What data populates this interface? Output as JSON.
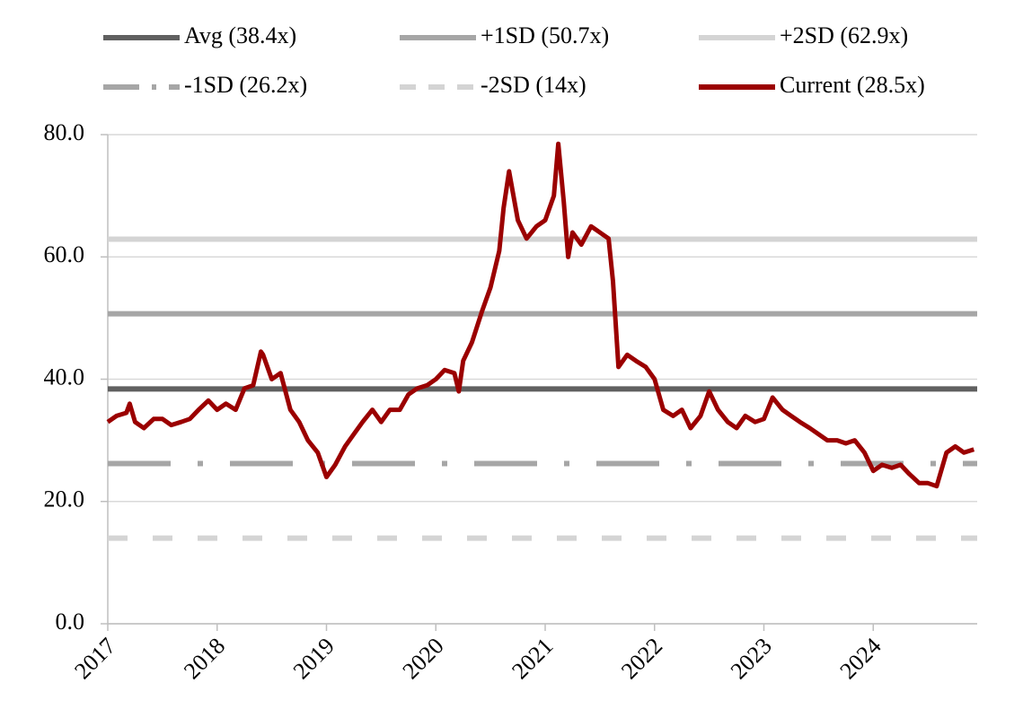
{
  "chart_data": {
    "type": "line",
    "hlines": [
      {
        "name": "Avg (38.4x)",
        "value": 38.4,
        "color": "#606060",
        "dash": "solid"
      },
      {
        "name": "+1SD (50.7x)",
        "value": 50.7,
        "color": "#a6a6a6",
        "dash": "solid"
      },
      {
        "name": "+2SD (62.9x)",
        "value": 62.9,
        "color": "#d4d4d4",
        "dash": "solid"
      },
      {
        "name": "-1SD (26.2x)",
        "value": 26.2,
        "color": "#a6a6a6",
        "dash": "dashdot"
      },
      {
        "name": "-2SD (14x)",
        "value": 14,
        "color": "#d4d4d4",
        "dash": "dash"
      }
    ],
    "series": [
      {
        "name": "Current (28.5x)",
        "color": "#9b0000",
        "x": [
          2017.0,
          2017.08,
          2017.17,
          2017.2,
          2017.25,
          2017.33,
          2017.42,
          2017.5,
          2017.58,
          2017.67,
          2017.75,
          2017.83,
          2017.92,
          2018.0,
          2018.08,
          2018.17,
          2018.25,
          2018.33,
          2018.4,
          2018.42,
          2018.5,
          2018.58,
          2018.67,
          2018.75,
          2018.83,
          2018.92,
          2019.0,
          2019.08,
          2019.17,
          2019.25,
          2019.33,
          2019.42,
          2019.5,
          2019.58,
          2019.67,
          2019.75,
          2019.83,
          2019.92,
          2020.0,
          2020.08,
          2020.17,
          2020.21,
          2020.25,
          2020.33,
          2020.42,
          2020.5,
          2020.58,
          2020.62,
          2020.67,
          2020.75,
          2020.83,
          2020.92,
          2021.0,
          2021.08,
          2021.12,
          2021.17,
          2021.21,
          2021.25,
          2021.33,
          2021.42,
          2021.5,
          2021.58,
          2021.62,
          2021.67,
          2021.75,
          2021.83,
          2021.92,
          2022.0,
          2022.08,
          2022.17,
          2022.25,
          2022.33,
          2022.42,
          2022.5,
          2022.58,
          2022.67,
          2022.75,
          2022.83,
          2022.92,
          2023.0,
          2023.08,
          2023.17,
          2023.25,
          2023.33,
          2023.42,
          2023.5,
          2023.58,
          2023.67,
          2023.75,
          2023.83,
          2023.92,
          2024.0,
          2024.08,
          2024.17,
          2024.25,
          2024.33,
          2024.42,
          2024.5,
          2024.58,
          2024.67,
          2024.75,
          2024.83,
          2024.92
        ],
        "values": [
          33,
          34,
          34.5,
          36,
          33,
          32,
          33.5,
          33.5,
          32.5,
          33,
          33.5,
          35,
          36.5,
          35,
          36,
          35,
          38.5,
          39,
          44.5,
          44,
          40,
          41,
          35,
          33,
          30,
          28,
          24,
          26,
          29,
          31,
          33,
          35,
          33,
          35,
          35,
          37.5,
          38.5,
          39,
          40,
          41.5,
          41,
          38,
          43,
          46,
          51,
          55,
          61,
          68,
          74,
          66,
          63,
          65,
          66,
          70,
          78.5,
          69,
          60,
          64,
          62,
          65,
          64,
          63,
          56,
          42,
          44,
          43,
          42,
          40,
          35,
          34,
          35,
          32,
          34,
          38,
          35,
          33,
          32,
          34,
          33,
          33.5,
          37,
          35,
          34,
          33,
          32,
          31,
          30,
          30,
          29.5,
          30,
          28,
          25,
          26,
          25.5,
          26,
          24.5,
          23,
          23,
          22.5,
          28,
          29,
          28,
          28.5
        ]
      }
    ],
    "xlim": [
      2017,
      2025
    ],
    "xticks": [
      2017,
      2018,
      2019,
      2020,
      2021,
      2022,
      2023,
      2024
    ],
    "ylim": [
      0,
      80
    ],
    "yticks": [
      {
        "value": 0,
        "label": "0.0"
      },
      {
        "value": 20,
        "label": "20.0"
      },
      {
        "value": 40,
        "label": "40.0"
      },
      {
        "value": 60,
        "label": "60.0"
      },
      {
        "value": 80,
        "label": "80.0"
      }
    ],
    "grid": true
  }
}
